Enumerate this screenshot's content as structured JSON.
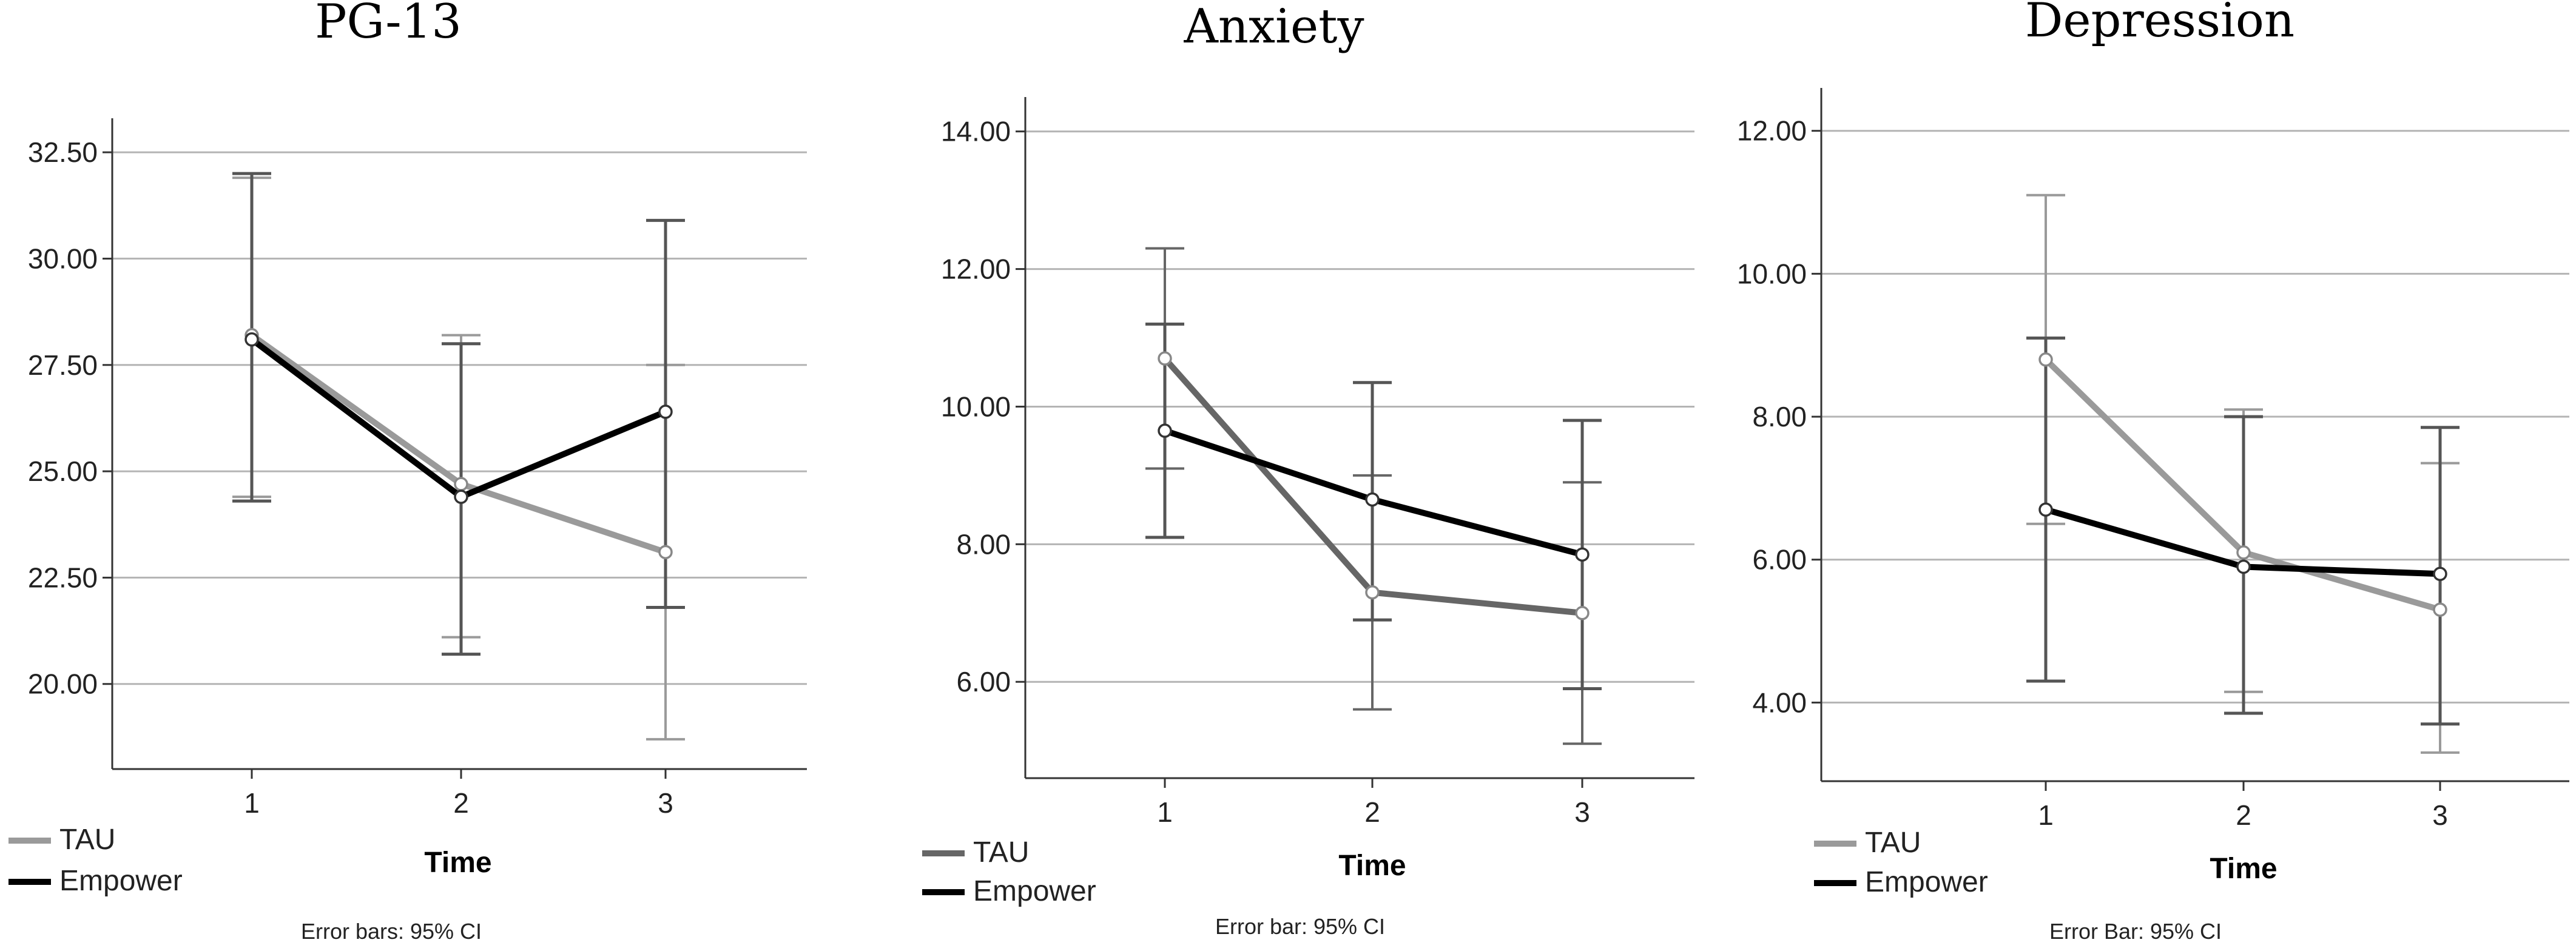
{
  "chart_data": [
    {
      "type": "line",
      "title": "PG-13",
      "xlabel": "Time",
      "ylabel": "",
      "categories": [
        "1",
        "2",
        "3"
      ],
      "ylim": [
        18.0,
        33.3
      ],
      "yticks": [
        "32.50",
        "30.00",
        "27.50",
        "25.00",
        "22.50",
        "20.00"
      ],
      "grid": true,
      "legend": "bottom-left",
      "note": "Error bars: 95% CI",
      "series": [
        {
          "name": "TAU",
          "color": "#9a9a9a",
          "values": [
            28.2,
            24.7,
            23.1
          ],
          "ci_low": [
            24.4,
            21.1,
            18.7
          ],
          "ci_high": [
            31.9,
            28.2,
            27.5
          ]
        },
        {
          "name": "Empower",
          "color": "#000000",
          "values": [
            28.1,
            24.4,
            26.4
          ],
          "ci_low": [
            24.3,
            20.7,
            21.8
          ],
          "ci_high": [
            32.0,
            28.0,
            30.9
          ]
        }
      ]
    },
    {
      "type": "line",
      "title": "Anxiety",
      "xlabel": "Time",
      "ylabel": "",
      "categories": [
        "1",
        "2",
        "3"
      ],
      "ylim": [
        4.6,
        14.5
      ],
      "yticks": [
        "14.00",
        "12.00",
        "10.00",
        "8.00",
        "6.00"
      ],
      "grid": true,
      "legend": "bottom-left",
      "note": "Error bar: 95% CI",
      "series": [
        {
          "name": "TAU",
          "color": "#666666",
          "values": [
            10.7,
            7.3,
            7.0
          ],
          "ci_low": [
            9.1,
            5.6,
            5.1
          ],
          "ci_high": [
            12.3,
            9.0,
            8.9
          ]
        },
        {
          "name": "Empower",
          "color": "#000000",
          "values": [
            9.65,
            8.65,
            7.85
          ],
          "ci_low": [
            8.1,
            6.9,
            5.9
          ],
          "ci_high": [
            11.2,
            10.35,
            9.8
          ]
        }
      ]
    },
    {
      "type": "line",
      "title": "Depression",
      "xlabel": "Time",
      "ylabel": "",
      "categories": [
        "1",
        "2",
        "3"
      ],
      "ylim": [
        2.9,
        12.6
      ],
      "yticks": [
        "12.00",
        "10.00",
        "8.00",
        "6.00",
        "4.00"
      ],
      "grid": true,
      "legend": "bottom-left",
      "note": "Error Bar: 95% CI",
      "series": [
        {
          "name": "TAU",
          "color": "#9a9a9a",
          "values": [
            8.8,
            6.1,
            5.3
          ],
          "ci_low": [
            6.5,
            4.15,
            3.3
          ],
          "ci_high": [
            11.1,
            8.1,
            7.35
          ]
        },
        {
          "name": "Empower",
          "color": "#000000",
          "values": [
            6.7,
            5.9,
            5.8
          ],
          "ci_low": [
            4.3,
            3.85,
            3.7
          ],
          "ci_high": [
            9.1,
            8.0,
            7.85
          ]
        }
      ]
    }
  ]
}
